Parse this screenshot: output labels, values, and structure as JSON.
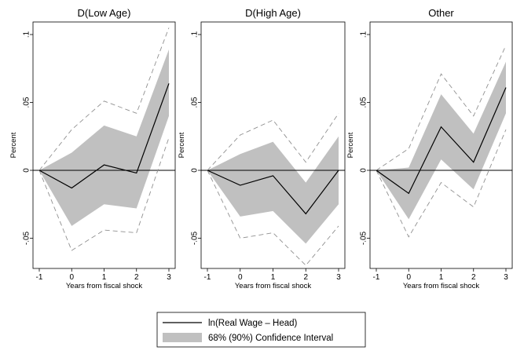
{
  "chart_data": [
    {
      "type": "line",
      "title": "D(Low Age)",
      "xlabel": "Years from fiscal shock",
      "ylabel": "Percent",
      "x": [
        -1,
        0,
        1,
        2,
        3
      ],
      "x_ticks": [
        "-1",
        "0",
        "1",
        "2",
        "3"
      ],
      "y_ticks": [
        ".1",
        ".05",
        "0",
        "-.05"
      ],
      "ylim": [
        -0.07,
        0.105
      ],
      "point": [
        0,
        -0.013,
        0.004,
        -0.002,
        0.064
      ],
      "ci68_upper": [
        0,
        0.013,
        0.033,
        0.025,
        0.089
      ],
      "ci68_lower": [
        0,
        -0.041,
        -0.025,
        -0.028,
        0.04
      ],
      "ci90_upper": [
        0,
        0.03,
        0.051,
        0.042,
        0.105
      ],
      "ci90_lower": [
        0,
        -0.059,
        -0.044,
        -0.046,
        0.024
      ]
    },
    {
      "type": "line",
      "title": "D(High Age)",
      "xlabel": "Years from fiscal shock",
      "ylabel": "Percent",
      "x": [
        -1,
        0,
        1,
        2,
        3
      ],
      "x_ticks": [
        "-1",
        "0",
        "1",
        "2",
        "3"
      ],
      "y_ticks": [
        ".1",
        ".05",
        "0",
        "-.05"
      ],
      "ylim": [
        -0.07,
        0.105
      ],
      "point": [
        0,
        -0.011,
        -0.004,
        -0.032,
        0
      ],
      "ci68_upper": [
        0,
        0.012,
        0.021,
        -0.009,
        0.025
      ],
      "ci68_lower": [
        0,
        -0.034,
        -0.03,
        -0.054,
        -0.025
      ],
      "ci90_upper": [
        0,
        0.026,
        0.037,
        0.006,
        0.042
      ],
      "ci90_lower": [
        0,
        -0.05,
        -0.046,
        -0.07,
        -0.041
      ]
    },
    {
      "type": "line",
      "title": "Other",
      "xlabel": "Years from fiscal shock",
      "ylabel": "Percent",
      "x": [
        -1,
        0,
        1,
        2,
        3
      ],
      "x_ticks": [
        "-1",
        "0",
        "1",
        "2",
        "3"
      ],
      "y_ticks": [
        ".1",
        ".05",
        "0",
        "-.05"
      ],
      "ylim": [
        -0.07,
        0.105
      ],
      "point": [
        0,
        -0.017,
        0.032,
        0.006,
        0.061
      ],
      "ci68_upper": [
        0,
        0.002,
        0.056,
        0.027,
        0.08
      ],
      "ci68_lower": [
        0,
        -0.036,
        0.008,
        -0.014,
        0.042
      ],
      "ci90_upper": [
        0,
        0.016,
        0.071,
        0.04,
        0.092
      ],
      "ci90_lower": [
        0,
        -0.049,
        -0.009,
        -0.027,
        0.03
      ]
    }
  ],
  "legend": {
    "line_label": "ln(Real Wage – Head)",
    "band_label": "68% (90%) Confidence Interval"
  },
  "colors": {
    "band": "#c0c0c0",
    "line": "#000000",
    "ci90": "#909090",
    "frame": "#000000"
  }
}
